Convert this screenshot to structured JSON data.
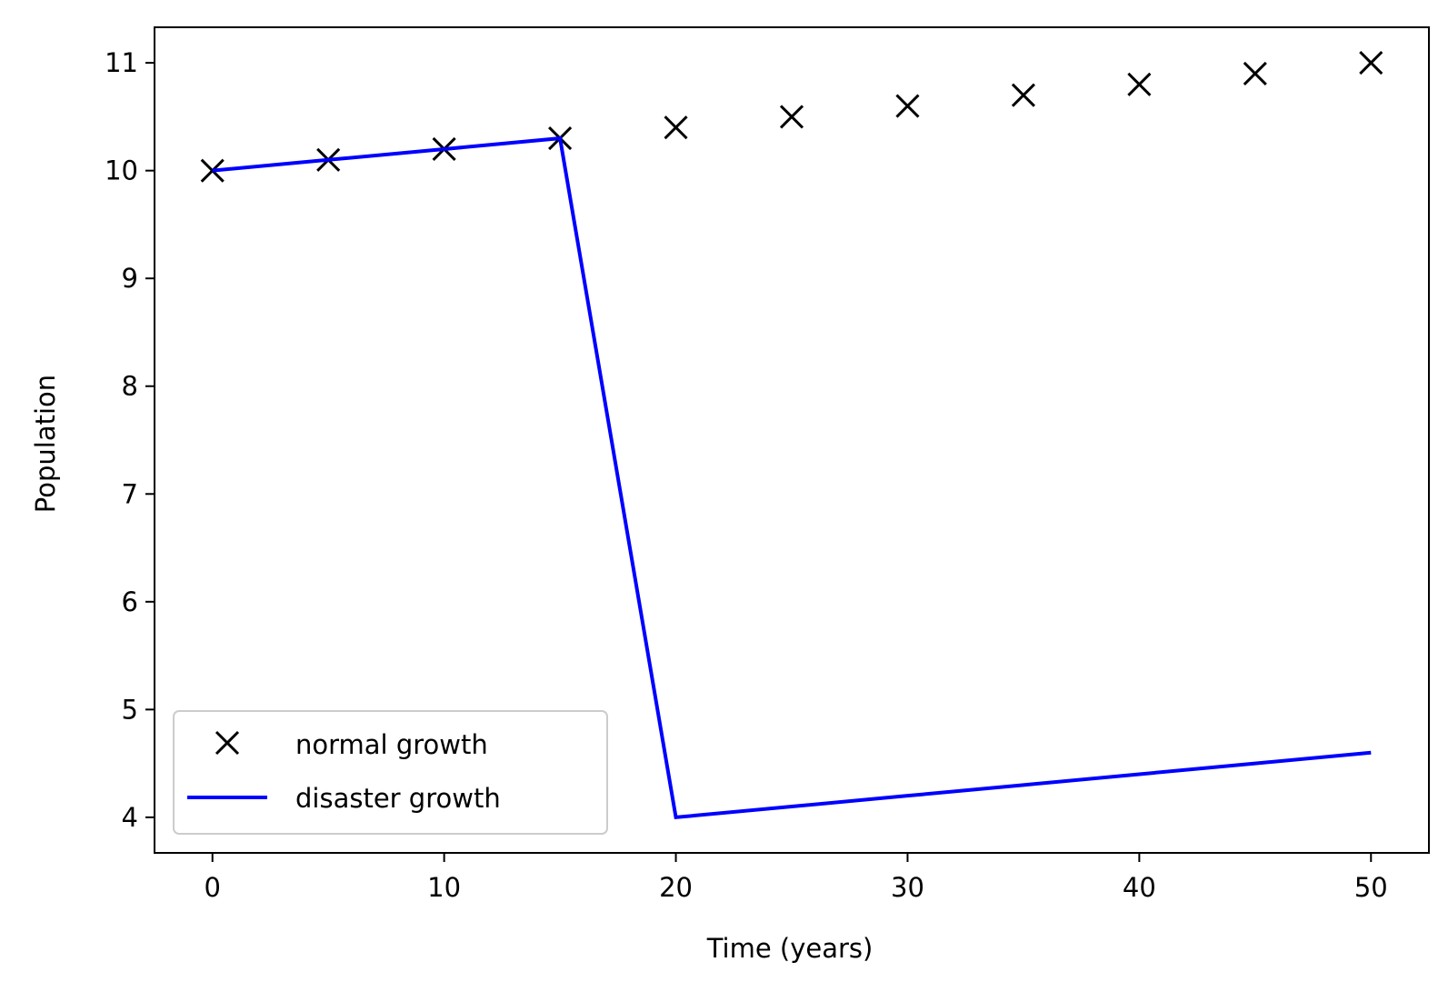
{
  "chart_data": {
    "type": "line",
    "title": "",
    "xlabel": "Time (years)",
    "ylabel": "Population",
    "xlim": [
      -2.5,
      52.5
    ],
    "ylim": [
      3.67,
      11.33
    ],
    "xticks": [
      0,
      10,
      20,
      30,
      40,
      50
    ],
    "yticks": [
      4,
      5,
      6,
      7,
      8,
      9,
      10,
      11
    ],
    "grid": false,
    "legend_position": "lower-left",
    "series": [
      {
        "name": "normal growth",
        "style": "markers",
        "marker": "x",
        "color": "#000000",
        "x": [
          0,
          5,
          10,
          15,
          20,
          25,
          30,
          35,
          40,
          45,
          50
        ],
        "y": [
          10.0,
          10.1,
          10.2,
          10.3,
          10.4,
          10.5,
          10.6,
          10.7,
          10.8,
          10.9,
          11.0
        ]
      },
      {
        "name": "disaster growth",
        "style": "line",
        "color": "#0000ff",
        "x": [
          0,
          5,
          10,
          15,
          20,
          25,
          30,
          35,
          40,
          45,
          50
        ],
        "y": [
          10.0,
          10.1,
          10.2,
          10.3,
          4.0,
          4.1,
          4.2,
          4.3,
          4.4,
          4.5,
          4.6
        ]
      }
    ]
  }
}
